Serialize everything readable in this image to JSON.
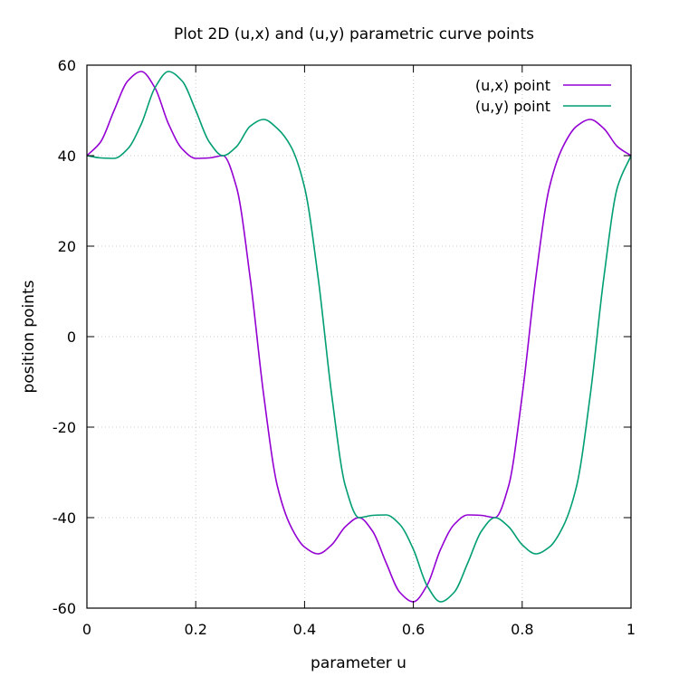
{
  "chart_data": {
    "type": "line",
    "title": "Plot 2D (u,x) and (u,y) parametric curve points",
    "xlabel": "parameter u",
    "ylabel": "position points",
    "xlim": [
      0,
      1
    ],
    "ylim": [
      -60,
      60
    ],
    "xticks": [
      0,
      0.2,
      0.4,
      0.6,
      0.8,
      1
    ],
    "xtick_labels": [
      "0",
      "0.2",
      "0.4",
      "0.6",
      "0.8",
      "1"
    ],
    "yticks": [
      -60,
      -40,
      -20,
      0,
      20,
      40,
      60
    ],
    "ytick_labels": [
      "-60",
      "-40",
      "-20",
      "0",
      "20",
      "40",
      "60"
    ],
    "grid": true,
    "legend_position": "top-right",
    "series": [
      {
        "name": "(u,x) point",
        "color": "#9400d3",
        "x": [
          0,
          0.025,
          0.05,
          0.075,
          0.1,
          0.125,
          0.15,
          0.175,
          0.2,
          0.225,
          0.25,
          0.275,
          0.3,
          0.325,
          0.35,
          0.375,
          0.4,
          0.425,
          0.45,
          0.475,
          0.5,
          0.525,
          0.55,
          0.575,
          0.6,
          0.625,
          0.65,
          0.675,
          0.7,
          0.725,
          0.75,
          0.775,
          0.8,
          0.825,
          0.85,
          0.875,
          0.9,
          0.925,
          0.95,
          0.975,
          1
        ],
        "y": [
          40,
          43,
          50,
          56.5,
          58.6,
          55,
          47,
          41.5,
          39.4,
          39.5,
          40,
          33,
          13,
          -13,
          -33,
          -42,
          -46.5,
          -48,
          -46,
          -42,
          -40,
          -43,
          -50,
          -56.5,
          -58.6,
          -55,
          -47,
          -41.5,
          -39.4,
          -39.5,
          -40,
          -33,
          -13,
          13,
          33,
          42,
          46.5,
          48,
          46,
          42,
          40
        ]
      },
      {
        "name": "(u,y) point",
        "color": "#009e73",
        "x": [
          0,
          0.025,
          0.05,
          0.075,
          0.1,
          0.125,
          0.15,
          0.175,
          0.2,
          0.225,
          0.25,
          0.275,
          0.3,
          0.325,
          0.35,
          0.375,
          0.4,
          0.425,
          0.45,
          0.475,
          0.5,
          0.525,
          0.55,
          0.575,
          0.6,
          0.625,
          0.65,
          0.675,
          0.7,
          0.725,
          0.75,
          0.775,
          0.8,
          0.825,
          0.85,
          0.875,
          0.9,
          0.925,
          0.95,
          0.975,
          1
        ],
        "y": [
          40,
          39.5,
          39.4,
          41.5,
          47,
          55,
          58.6,
          56.5,
          50,
          43,
          40,
          42,
          46.5,
          48,
          46,
          42,
          33,
          13,
          -13,
          -33,
          -40,
          -39.5,
          -39.4,
          -41.5,
          -47,
          -55,
          -58.6,
          -56.5,
          -50,
          -43,
          -40,
          -42,
          -46,
          -48,
          -46.5,
          -42,
          -33,
          -13,
          13,
          33,
          40
        ]
      }
    ]
  }
}
